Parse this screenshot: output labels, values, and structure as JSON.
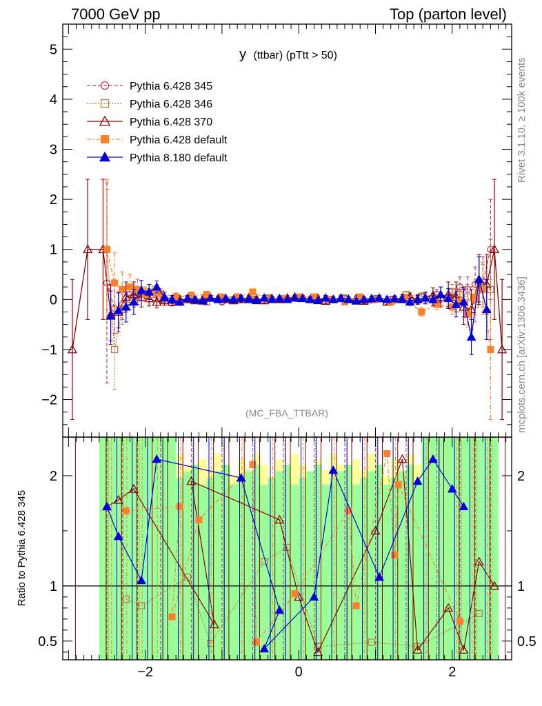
{
  "header": {
    "left": "7000 GeV pp",
    "right": "Top (parton level)"
  },
  "side": {
    "rivet": "Rivet 3.1.10, ≥ 100k events",
    "mcplots": "mcplots.cern.ch [arXiv:1306.3436]"
  },
  "chart_data": {
    "type": "line",
    "title_main": "y",
    "title_sub": "(ttbar) (pTtt > 50)",
    "watermark": "(MC_FBA_TTBAR)",
    "xlim": [
      -3.075,
      2.775
    ],
    "top_ylim": [
      -2.75,
      5.5
    ],
    "top_yticks": [
      -2,
      -1,
      0,
      1,
      2,
      3,
      4,
      5
    ],
    "top_ytick_labels": [
      "−2",
      "−1",
      "0",
      "1",
      "2",
      "3",
      "4",
      "5"
    ],
    "ratio_ylabel": "Ratio to Pythia 6.428 345",
    "ratio_ylim": [
      0.33,
      2.35
    ],
    "ratio_yticks": [
      0.5,
      1,
      2
    ],
    "ratio_ytick_labels": [
      "0.5",
      "1",
      "2"
    ],
    "xticks": [
      -2,
      0,
      2
    ],
    "xtick_labels": [
      "−2",
      "0",
      "2"
    ],
    "band_x": [
      -2.6,
      2.6
    ],
    "series": [
      {
        "name": "Pythia 6.428 345",
        "color": "#c0395c",
        "marker": "circle-open",
        "dash": "5,3",
        "x": [
          -2.5,
          -2.4,
          -2.3,
          -2.2,
          -2.1,
          -2.0,
          -1.8,
          -1.6,
          -1.4,
          -1.2,
          -1.0,
          -0.8,
          -0.6,
          -0.4,
          -0.2,
          0.0,
          0.2,
          0.4,
          0.6,
          0.8,
          1.0,
          1.2,
          1.4,
          1.6,
          1.8,
          2.0,
          2.1,
          2.2,
          2.3,
          2.4,
          2.5
        ],
        "y": [
          0.33,
          -0.18,
          -0.1,
          0.1,
          0.05,
          0.08,
          0.02,
          -0.05,
          0.0,
          0.03,
          -0.05,
          0.02,
          0.0,
          0.01,
          0.0,
          0.03,
          0.0,
          0.0,
          0.02,
          0.0,
          0.02,
          0.0,
          0.03,
          0.05,
          0.1,
          0.05,
          0.25,
          0.2,
          0.3,
          0.35,
          1.0
        ],
        "err": [
          2.0,
          0.5,
          0.3,
          0.2,
          0.15,
          0.1,
          0.08,
          0.06,
          0.05,
          0.05,
          0.05,
          0.05,
          0.05,
          0.05,
          0.05,
          0.05,
          0.05,
          0.05,
          0.05,
          0.05,
          0.05,
          0.05,
          0.06,
          0.08,
          0.1,
          0.15,
          0.2,
          0.25,
          0.35,
          0.5,
          1.0
        ],
        "ratio_x": [
          -2.4,
          -2.2,
          -1.9,
          -1.6,
          -1.3,
          -1.0,
          -0.7,
          -0.4,
          -0.1,
          0.2,
          0.5,
          0.8,
          1.1,
          1.4,
          1.7,
          2.0,
          2.3
        ],
        "ratio_y": [
          0.25,
          0.0,
          0.0,
          0.0,
          0.0,
          0.0,
          0.0,
          0.0,
          0.0,
          0.0,
          0.0,
          0.0,
          0.0,
          0.0,
          0.0,
          0.0,
          0.0
        ]
      },
      {
        "name": "Pythia 6.428 346",
        "color": "#b08040",
        "marker": "square-open",
        "dash": "2,2",
        "x": [
          -2.5,
          -2.4,
          -2.3,
          -2.2,
          -2.1,
          -2.0,
          -1.8,
          -1.6,
          -1.4,
          -1.2,
          -1.0,
          -0.8,
          -0.6,
          -0.4,
          -0.2,
          0.0,
          0.2,
          0.4,
          0.6,
          0.8,
          1.0,
          1.2,
          1.4,
          1.6,
          1.8,
          2.0,
          2.1,
          2.2,
          2.3,
          2.4,
          2.5
        ],
        "y": [
          1.0,
          -1.0,
          -0.2,
          0.0,
          0.1,
          0.15,
          0.05,
          0.05,
          0.08,
          -0.05,
          0.02,
          0.05,
          0.0,
          0.03,
          0.0,
          0.02,
          0.05,
          0.0,
          0.03,
          0.0,
          0.0,
          -0.05,
          0.1,
          0.05,
          0.0,
          0.15,
          0.1,
          0.05,
          -0.1,
          0.25,
          0.2
        ],
        "err": [
          1.2,
          0.8,
          0.3,
          0.2,
          0.15,
          0.1,
          0.08,
          0.06,
          0.05,
          0.05,
          0.05,
          0.05,
          0.05,
          0.05,
          0.05,
          0.05,
          0.05,
          0.05,
          0.05,
          0.05,
          0.05,
          0.05,
          0.06,
          0.08,
          0.1,
          0.15,
          0.2,
          0.25,
          0.35,
          0.5,
          1.0
        ],
        "ratio_x": [
          -2.25,
          -2.05,
          -1.45,
          -1.15,
          -0.45,
          -0.15,
          0.25,
          0.95,
          1.55,
          2.35
        ],
        "ratio_y": [
          0.88,
          0.82,
          1.08,
          0.48,
          1.22,
          1.35,
          0.45,
          0.49,
          0.45,
          0.75
        ]
      },
      {
        "name": "Pythia 6.428 370",
        "color": "#8b0000",
        "marker": "triangle-open",
        "dash": "",
        "x": [
          -2.95,
          -2.75,
          -2.55,
          -2.45,
          -2.35,
          -2.25,
          -2.15,
          -2.05,
          -1.95,
          -1.85,
          -1.75,
          -1.65,
          -1.55,
          -1.45,
          -1.35,
          -1.25,
          -1.15,
          -1.05,
          -0.95,
          -0.85,
          -0.75,
          -0.65,
          -0.55,
          -0.45,
          -0.35,
          -0.25,
          -0.15,
          -0.05,
          0.05,
          0.15,
          0.25,
          0.35,
          0.45,
          0.55,
          0.65,
          0.75,
          0.85,
          0.95,
          1.05,
          1.15,
          1.25,
          1.35,
          1.45,
          1.55,
          1.65,
          1.75,
          1.85,
          1.95,
          2.05,
          2.15,
          2.25,
          2.35,
          2.45,
          2.55,
          2.65
        ],
        "y": [
          -1.0,
          1.0,
          1.0,
          -0.3,
          -0.25,
          0.05,
          0.1,
          0.05,
          0.02,
          -0.05,
          -0.02,
          -0.05,
          0.0,
          0.0,
          -0.02,
          0.0,
          0.03,
          0.02,
          0.0,
          -0.02,
          0.0,
          0.03,
          0.0,
          -0.02,
          0.02,
          0.0,
          0.03,
          0.05,
          0.03,
          0.0,
          0.02,
          -0.03,
          0.0,
          0.03,
          0.0,
          0.02,
          -0.03,
          0.0,
          0.02,
          -0.05,
          0.0,
          0.03,
          0.05,
          0.0,
          0.03,
          0.08,
          0.05,
          0.1,
          0.05,
          -0.15,
          -0.2,
          0.4,
          0.3,
          1.0,
          -1.0
        ],
        "err": [
          1.4,
          1.4,
          1.4,
          0.6,
          0.4,
          0.3,
          0.25,
          0.2,
          0.15,
          0.12,
          0.1,
          0.08,
          0.07,
          0.06,
          0.05,
          0.05,
          0.05,
          0.05,
          0.05,
          0.05,
          0.05,
          0.05,
          0.05,
          0.05,
          0.05,
          0.05,
          0.05,
          0.05,
          0.05,
          0.05,
          0.05,
          0.05,
          0.05,
          0.05,
          0.05,
          0.05,
          0.05,
          0.05,
          0.05,
          0.05,
          0.06,
          0.07,
          0.08,
          0.1,
          0.12,
          0.15,
          0.2,
          0.25,
          0.3,
          0.35,
          0.4,
          0.5,
          0.6,
          1.4,
          1.4
        ],
        "ratio_x": [
          -2.5,
          -2.35,
          -2.15,
          -1.1,
          -1.4,
          -0.25,
          0.0,
          0.25,
          1.0,
          1.35,
          1.55,
          1.95,
          2.15,
          2.35,
          2.55
        ],
        "ratio_y": [
          1.72,
          1.78,
          1.88,
          0.65,
          1.95,
          1.6,
          0.9,
          0.4,
          1.5,
          2.15,
          0.42,
          0.8,
          0.42,
          1.22,
          1.0
        ]
      },
      {
        "name": "Pythia 6.428 default",
        "color": "#ff7f2a",
        "marker": "square-filled",
        "dash": "6,3,2,3",
        "x": [
          -2.5,
          -2.4,
          -2.3,
          -2.2,
          -2.1,
          -2.0,
          -1.9,
          -1.8,
          -1.6,
          -1.4,
          -1.2,
          -1.0,
          -0.8,
          -0.6,
          -0.4,
          -0.2,
          0.0,
          0.2,
          0.4,
          0.6,
          0.8,
          1.0,
          1.2,
          1.4,
          1.6,
          1.8,
          2.0,
          2.1,
          2.2,
          2.3,
          2.4,
          2.5
        ],
        "y": [
          1.0,
          0.33,
          0.2,
          0.25,
          0.2,
          0.1,
          0.15,
          0.12,
          0.05,
          0.08,
          0.1,
          0.05,
          0.05,
          0.15,
          0.0,
          0.02,
          0.05,
          0.05,
          0.0,
          -0.05,
          0.05,
          0.0,
          -0.05,
          0.0,
          -0.25,
          -0.1,
          -0.15,
          -0.05,
          -0.3,
          0.05,
          0.2,
          -1.0
        ],
        "err": [
          1.4,
          0.6,
          0.35,
          0.25,
          0.2,
          0.15,
          0.12,
          0.1,
          0.08,
          0.07,
          0.06,
          0.05,
          0.05,
          0.05,
          0.05,
          0.05,
          0.05,
          0.05,
          0.05,
          0.05,
          0.05,
          0.05,
          0.05,
          0.06,
          0.08,
          0.1,
          0.15,
          0.2,
          0.25,
          0.35,
          0.5,
          1.4
        ],
        "ratio_x": [
          -2.25,
          -1.55,
          -1.65,
          -1.3,
          -0.6,
          -0.55,
          -0.05,
          0.65,
          0.75,
          1.15,
          1.25,
          1.3,
          2.1
        ],
        "ratio_y": [
          1.68,
          1.72,
          0.72,
          1.6,
          2.1,
          0.49,
          0.93,
          1.68,
          0.82,
          2.2,
          1.28,
          1.92,
          0.68
        ]
      },
      {
        "name": "Pythia 8.180 default",
        "color": "#0000dd",
        "marker": "triangle-filled",
        "dash": "",
        "x": [
          -2.45,
          -2.35,
          -2.25,
          -2.15,
          -2.05,
          -1.95,
          -1.85,
          -1.75,
          -1.65,
          -1.55,
          -1.45,
          -1.35,
          -1.25,
          -1.15,
          -1.05,
          -0.95,
          -0.85,
          -0.75,
          -0.65,
          -0.55,
          -0.45,
          -0.35,
          -0.25,
          -0.15,
          -0.05,
          0.05,
          0.15,
          0.25,
          0.35,
          0.45,
          0.55,
          0.65,
          0.75,
          0.85,
          0.95,
          1.05,
          1.15,
          1.25,
          1.35,
          1.45,
          1.55,
          1.65,
          1.75,
          1.85,
          1.95,
          2.05,
          2.15,
          2.25,
          2.35,
          2.45
        ],
        "y": [
          -0.33,
          -0.22,
          -0.15,
          -0.05,
          0.18,
          0.15,
          0.25,
          0.05,
          0.0,
          -0.05,
          0.02,
          0.0,
          -0.03,
          0.03,
          0.0,
          0.02,
          0.0,
          0.03,
          0.0,
          -0.02,
          0.03,
          0.0,
          0.02,
          0.0,
          0.03,
          0.02,
          0.0,
          -0.02,
          0.03,
          0.0,
          0.02,
          0.0,
          -0.03,
          0.0,
          0.02,
          0.03,
          0.0,
          0.02,
          0.0,
          -0.05,
          0.0,
          0.03,
          0.0,
          0.1,
          0.02,
          -0.1,
          -0.05,
          -0.75,
          0.4,
          -0.2
        ],
        "err": [
          0.5,
          0.35,
          0.3,
          0.25,
          0.2,
          0.15,
          0.12,
          0.1,
          0.08,
          0.07,
          0.06,
          0.05,
          0.05,
          0.05,
          0.05,
          0.05,
          0.05,
          0.05,
          0.05,
          0.05,
          0.05,
          0.05,
          0.05,
          0.05,
          0.05,
          0.05,
          0.05,
          0.05,
          0.05,
          0.05,
          0.05,
          0.05,
          0.05,
          0.05,
          0.05,
          0.05,
          0.05,
          0.05,
          0.06,
          0.07,
          0.08,
          0.1,
          0.12,
          0.15,
          0.2,
          0.25,
          0.3,
          0.35,
          0.45,
          0.6
        ],
        "ratio_x": [
          -2.5,
          -2.35,
          -2.05,
          -1.85,
          -0.75,
          -0.25,
          -0.45,
          0.2,
          0.45,
          1.05,
          1.55,
          1.75,
          2.0,
          2.15
        ],
        "ratio_y": [
          1.72,
          1.45,
          1.05,
          2.15,
          1.98,
          0.78,
          0.43,
          0.9,
          2.05,
          1.08,
          1.95,
          2.15,
          1.88,
          1.72
        ]
      }
    ]
  }
}
